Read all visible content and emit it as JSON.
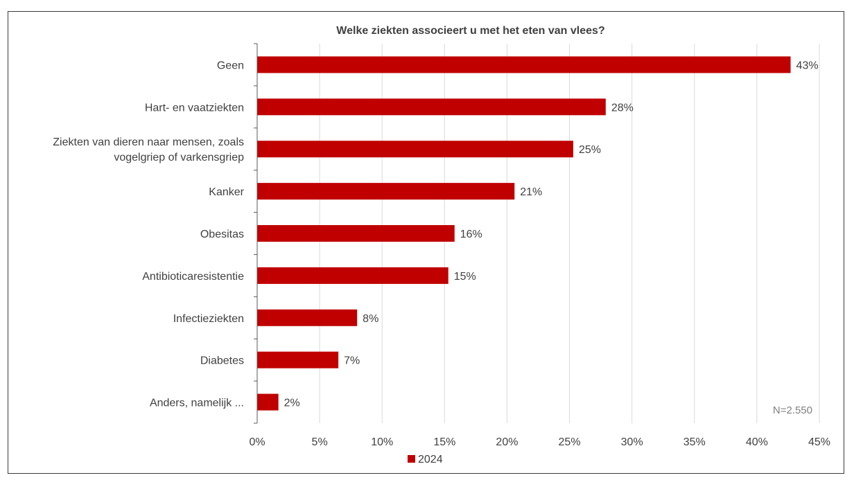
{
  "chart_data": {
    "type": "bar",
    "orientation": "horizontal",
    "title": "Welke ziekten associeert u met het eten van vlees?",
    "categories": [
      "Geen",
      "Hart- en vaatziekten",
      "Ziekten van dieren naar mensen, zoals vogelgriep of varkensgriep",
      "Kanker",
      "Obesitas",
      "Antibioticaresistentie",
      "Infectieziekten",
      "Diabetes",
      "Anders, namelijk ..."
    ],
    "category_lines": [
      [
        "Geen"
      ],
      [
        "Hart- en vaatziekten"
      ],
      [
        "Ziekten van dieren naar mensen, zoals",
        "vogelgriep of varkensgriep"
      ],
      [
        "Kanker"
      ],
      [
        "Obesitas"
      ],
      [
        "Antibioticaresistentie"
      ],
      [
        "Infectieziekten"
      ],
      [
        "Diabetes"
      ],
      [
        "Anders, namelijk ..."
      ]
    ],
    "series": [
      {
        "name": "2024",
        "values": [
          42.7,
          27.9,
          25.3,
          20.6,
          15.8,
          15.3,
          8.0,
          6.5,
          1.7
        ],
        "labels": [
          "43%",
          "28%",
          "25%",
          "21%",
          "16%",
          "15%",
          "8%",
          "7%",
          "2%"
        ],
        "color": "#c00000"
      }
    ],
    "xlim": [
      0,
      45
    ],
    "xticks": [
      0,
      5,
      10,
      15,
      20,
      25,
      30,
      35,
      40,
      45
    ],
    "xtick_labels": [
      "0%",
      "5%",
      "10%",
      "15%",
      "20%",
      "25%",
      "30%",
      "35%",
      "40%",
      "45%"
    ],
    "grid": true,
    "legend": "bottom",
    "annotation": "N=2.550"
  },
  "colors": {
    "bar": "#c00000",
    "grid": "#d9d9d9",
    "axis": "#595959",
    "text": "#404040",
    "title": "#404040",
    "annotation": "#7f7f7f"
  }
}
